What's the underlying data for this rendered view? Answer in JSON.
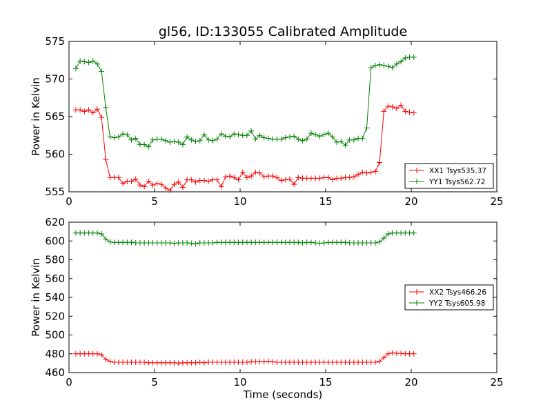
{
  "chart_data": [
    {
      "type": "line",
      "title": "gl56, ID:133055 Calibrated Amplitude",
      "xlabel": "",
      "ylabel": "Power in Kelvin",
      "xlim": [
        0,
        25
      ],
      "ylim": [
        555,
        575
      ],
      "x_ticks": [
        0,
        5,
        10,
        15,
        20,
        25
      ],
      "y_ticks": [
        555,
        560,
        565,
        570,
        575
      ],
      "grid": false,
      "legend_position": "lower-right",
      "x": [
        0.4,
        0.65,
        0.9,
        1.15,
        1.4,
        1.65,
        1.9,
        2.15,
        2.4,
        2.65,
        2.9,
        3.15,
        3.4,
        3.65,
        3.9,
        4.15,
        4.4,
        4.65,
        4.9,
        5.15,
        5.4,
        5.65,
        5.9,
        6.15,
        6.4,
        6.65,
        6.9,
        7.15,
        7.4,
        7.65,
        7.9,
        8.15,
        8.4,
        8.65,
        8.9,
        9.15,
        9.4,
        9.65,
        9.9,
        10.15,
        10.4,
        10.65,
        10.9,
        11.15,
        11.4,
        11.65,
        11.9,
        12.15,
        12.4,
        12.65,
        12.9,
        13.15,
        13.4,
        13.65,
        13.9,
        14.15,
        14.4,
        14.65,
        14.9,
        15.15,
        15.4,
        15.65,
        15.9,
        16.15,
        16.4,
        16.65,
        16.9,
        17.15,
        17.4,
        17.65,
        17.9,
        18.15,
        18.4,
        18.65,
        18.9,
        19.15,
        19.4,
        19.65,
        19.9,
        20.15
      ],
      "series": [
        {
          "name": "XX1 Tsys535.37",
          "color": "#ff0000",
          "values": [
            565.9,
            565.9,
            565.7,
            565.9,
            565.5,
            566.0,
            564.9,
            559.3,
            556.9,
            556.9,
            556.9,
            556.1,
            556.4,
            556.4,
            556.7,
            555.9,
            555.7,
            556.4,
            555.9,
            556.1,
            556.0,
            555.5,
            555.2,
            556.0,
            556.3,
            555.6,
            556.6,
            556.6,
            556.3,
            556.5,
            556.5,
            556.4,
            556.6,
            556.6,
            555.7,
            557.0,
            557.1,
            556.9,
            556.6,
            557.6,
            556.9,
            557.1,
            557.6,
            557.5,
            557.0,
            557.1,
            557.1,
            556.9,
            556.5,
            556.6,
            556.7,
            556.0,
            556.9,
            556.8,
            556.8,
            556.8,
            556.8,
            556.8,
            556.9,
            556.9,
            556.6,
            556.8,
            556.8,
            556.9,
            556.9,
            557.0,
            557.3,
            557.6,
            557.5,
            557.6,
            557.7,
            558.9,
            565.7,
            566.4,
            566.3,
            566.1,
            566.5,
            565.7,
            565.6,
            565.5
          ]
        },
        {
          "name": "YY1 Tsys562.72",
          "color": "#008000",
          "values": [
            571.4,
            572.4,
            572.3,
            572.2,
            572.4,
            572.0,
            571.0,
            566.2,
            562.3,
            562.2,
            562.3,
            562.7,
            562.6,
            561.9,
            562.1,
            561.3,
            561.3,
            561.0,
            561.9,
            562.0,
            562.0,
            561.8,
            561.6,
            561.7,
            561.6,
            561.3,
            562.3,
            561.9,
            561.7,
            561.8,
            562.6,
            561.9,
            561.8,
            562.0,
            562.7,
            562.4,
            562.3,
            562.7,
            562.6,
            562.5,
            562.5,
            563.1,
            562.0,
            562.5,
            562.2,
            562.1,
            562.0,
            562.0,
            562.0,
            562.2,
            562.3,
            562.4,
            562.0,
            561.8,
            562.0,
            562.8,
            562.6,
            562.4,
            562.6,
            562.8,
            562.3,
            561.6,
            561.7,
            561.2,
            561.9,
            561.9,
            562.1,
            562.1,
            563.5,
            571.5,
            571.8,
            571.9,
            571.8,
            571.7,
            571.5,
            572.0,
            572.3,
            572.8,
            572.9,
            572.9
          ]
        }
      ]
    },
    {
      "type": "line",
      "title": "",
      "xlabel": "Time (seconds)",
      "ylabel": "Power in Kelvin",
      "xlim": [
        0,
        25
      ],
      "ylim": [
        460,
        620
      ],
      "x_ticks": [
        0,
        5,
        10,
        15,
        20,
        25
      ],
      "y_ticks": [
        460,
        480,
        500,
        520,
        540,
        560,
        580,
        600,
        620
      ],
      "grid": false,
      "legend_position": "center-right",
      "x": [
        0.4,
        0.65,
        0.9,
        1.15,
        1.4,
        1.65,
        1.9,
        2.15,
        2.4,
        2.65,
        2.9,
        3.15,
        3.4,
        3.65,
        3.9,
        4.15,
        4.4,
        4.65,
        4.9,
        5.15,
        5.4,
        5.65,
        5.9,
        6.15,
        6.4,
        6.65,
        6.9,
        7.15,
        7.4,
        7.65,
        7.9,
        8.15,
        8.4,
        8.65,
        8.9,
        9.15,
        9.4,
        9.65,
        9.9,
        10.15,
        10.4,
        10.65,
        10.9,
        11.15,
        11.4,
        11.65,
        11.9,
        12.15,
        12.4,
        12.65,
        12.9,
        13.15,
        13.4,
        13.65,
        13.9,
        14.15,
        14.4,
        14.65,
        14.9,
        15.15,
        15.4,
        15.65,
        15.9,
        16.15,
        16.4,
        16.65,
        16.9,
        17.15,
        17.4,
        17.65,
        17.9,
        18.15,
        18.4,
        18.65,
        18.9,
        19.15,
        19.4,
        19.65,
        19.9,
        20.15
      ],
      "series": [
        {
          "name": "XX2 Tsys466.26",
          "color": "#ff0000",
          "values": [
            480,
            480,
            480,
            480,
            480,
            480,
            479,
            474,
            472,
            471,
            471,
            471,
            471,
            471,
            471,
            471,
            471,
            470.5,
            470.5,
            470.5,
            470.5,
            470.5,
            470.5,
            470.5,
            470,
            470.5,
            470.5,
            470.5,
            470.5,
            471,
            470.5,
            471,
            471,
            471,
            471,
            471,
            471,
            471,
            471,
            471,
            471,
            471.5,
            471.5,
            471.5,
            471.5,
            472,
            471.5,
            471,
            471,
            471,
            471,
            471,
            471,
            471,
            471,
            471,
            471,
            471,
            471,
            471,
            471,
            471,
            471,
            471,
            471,
            471,
            471,
            471,
            471,
            471,
            471,
            472,
            476,
            480,
            481,
            480.5,
            480.5,
            480,
            480,
            480
          ]
        },
        {
          "name": "YY2 Tsys605.98",
          "color": "#008000",
          "values": [
            608.5,
            608.5,
            608.5,
            608.5,
            608.5,
            608.5,
            607.5,
            602,
            599,
            598.5,
            598.5,
            598.5,
            598.5,
            598.5,
            598,
            598,
            598,
            598,
            598,
            598,
            598,
            598,
            598,
            597.5,
            598,
            598,
            598,
            597.5,
            597,
            598,
            598,
            598,
            598,
            598.5,
            598.5,
            598.5,
            598.5,
            598.5,
            598.5,
            598.5,
            598.5,
            598.5,
            598.5,
            598.5,
            598.5,
            598.5,
            598.5,
            598.5,
            598.5,
            598.5,
            598.5,
            598.5,
            598.5,
            598,
            598.5,
            598.5,
            598,
            597.5,
            598,
            598.5,
            598.5,
            598.5,
            598.5,
            598.5,
            598,
            598,
            598,
            598,
            598,
            598,
            598,
            599,
            603,
            607.5,
            608.5,
            608.5,
            608.5,
            608.5,
            608.5,
            608.5
          ]
        }
      ]
    }
  ]
}
